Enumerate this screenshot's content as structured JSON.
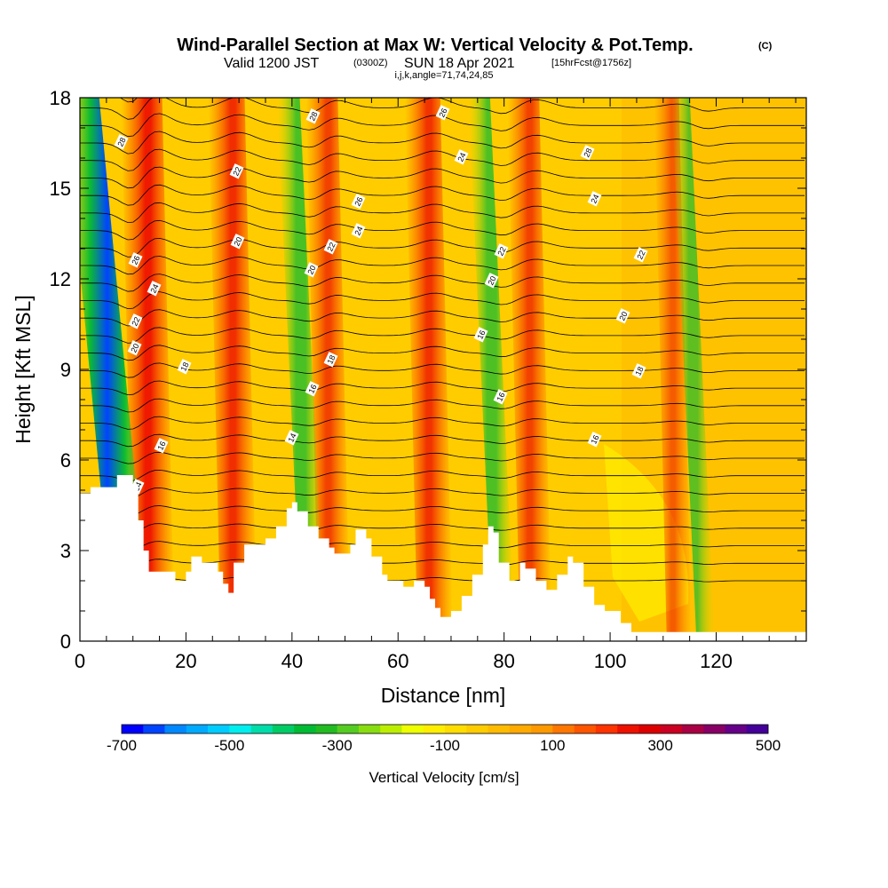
{
  "chart_data": {
    "type": "heatmap",
    "title": "Wind-Parallel Section at Max W: Vertical Velocity & Pot.Temp.",
    "title_mark": "(C)",
    "subtitle_main": "Valid 1200 JST",
    "subtitle_z": "(0300Z)",
    "subtitle_date": "SUN 18 Apr 2021",
    "subtitle_fcst": "[15hrFcst@1756z]",
    "subtitle2": "i,j,k,angle=71,74,24,85",
    "xlabel": "Distance [nm]",
    "ylabel": "Height [Kft MSL]",
    "xlim": [
      0,
      137
    ],
    "ylim": [
      0,
      18
    ],
    "xticks": [
      "0",
      "20",
      "40",
      "60",
      "80",
      "100",
      "120"
    ],
    "yticks": [
      "0",
      "3",
      "6",
      "9",
      "12",
      "15",
      "18"
    ],
    "colorbar": {
      "label": "Vertical Velocity [cm/s]",
      "tick_labels": [
        "-700",
        "-500",
        "-300",
        "-100",
        "100",
        "300",
        "500"
      ],
      "colors": [
        "#0000ff",
        "#0044ff",
        "#0088ff",
        "#00aaff",
        "#00ccff",
        "#00eeee",
        "#00ddaa",
        "#00cc66",
        "#00bb33",
        "#22bb22",
        "#55cc22",
        "#88dd11",
        "#bbee00",
        "#eeff00",
        "#ffee00",
        "#ffdd00",
        "#ffcc00",
        "#ffbb00",
        "#ffaa00",
        "#ff9900",
        "#ff7700",
        "#ff5500",
        "#ff3300",
        "#ee1100",
        "#dd0000",
        "#cc0022",
        "#aa0044",
        "#880066",
        "#660088",
        "#440099"
      ]
    },
    "updrafts": [
      {
        "x": 14,
        "strength": 1.0
      },
      {
        "x": 30,
        "strength": 0.8
      },
      {
        "x": 48,
        "strength": 0.6
      },
      {
        "x": 67,
        "strength": 0.75
      },
      {
        "x": 86,
        "strength": 0.6
      },
      {
        "x": 113,
        "strength": 0.3
      }
    ],
    "downdrafts": [
      {
        "x": 10,
        "strength": 1.0
      },
      {
        "x": 44,
        "strength": 0.45
      },
      {
        "x": 80,
        "strength": 0.4
      },
      {
        "x": 118,
        "strength": 0.25
      }
    ],
    "theta_labels": [
      "14",
      "16",
      "18",
      "20",
      "22",
      "24",
      "26",
      "28"
    ],
    "terrain": [
      [
        0,
        4.9
      ],
      [
        2,
        5.1
      ],
      [
        4,
        5.1
      ],
      [
        7,
        5.5
      ],
      [
        10,
        5.2
      ],
      [
        11,
        4.0
      ],
      [
        12,
        3.0
      ],
      [
        13,
        2.3
      ],
      [
        17,
        2.3
      ],
      [
        18,
        2.0
      ],
      [
        20,
        2.3
      ],
      [
        21,
        2.8
      ],
      [
        23,
        2.6
      ],
      [
        25,
        2.6
      ],
      [
        26,
        2.3
      ],
      [
        27,
        1.9
      ],
      [
        28,
        1.6
      ],
      [
        29,
        2.6
      ],
      [
        31,
        3.2
      ],
      [
        35,
        3.4
      ],
      [
        37,
        3.8
      ],
      [
        39,
        4.4
      ],
      [
        40,
        4.6
      ],
      [
        41,
        4.3
      ],
      [
        43,
        3.8
      ],
      [
        45,
        3.4
      ],
      [
        47,
        3.1
      ],
      [
        48,
        2.9
      ],
      [
        51,
        3.2
      ],
      [
        52,
        3.7
      ],
      [
        54,
        3.4
      ],
      [
        55,
        2.8
      ],
      [
        57,
        2.2
      ],
      [
        58,
        2.0
      ],
      [
        61,
        1.8
      ],
      [
        63,
        2.0
      ],
      [
        65,
        1.8
      ],
      [
        66,
        1.4
      ],
      [
        67,
        1.1
      ],
      [
        68,
        0.8
      ],
      [
        70,
        1.0
      ],
      [
        72,
        1.5
      ],
      [
        74,
        2.2
      ],
      [
        76,
        3.2
      ],
      [
        77,
        3.8
      ],
      [
        78,
        3.6
      ],
      [
        79,
        2.6
      ],
      [
        81,
        2.0
      ],
      [
        83,
        2.6
      ],
      [
        84,
        2.4
      ],
      [
        86,
        2.0
      ],
      [
        88,
        1.7
      ],
      [
        90,
        2.2
      ],
      [
        92,
        2.8
      ],
      [
        93,
        2.6
      ],
      [
        95,
        1.8
      ],
      [
        97,
        1.2
      ],
      [
        99,
        1.0
      ],
      [
        102,
        0.6
      ],
      [
        104,
        0.3
      ],
      [
        108,
        0.3
      ],
      [
        115,
        0.3
      ],
      [
        130,
        0.3
      ],
      [
        137,
        0.3
      ]
    ]
  }
}
